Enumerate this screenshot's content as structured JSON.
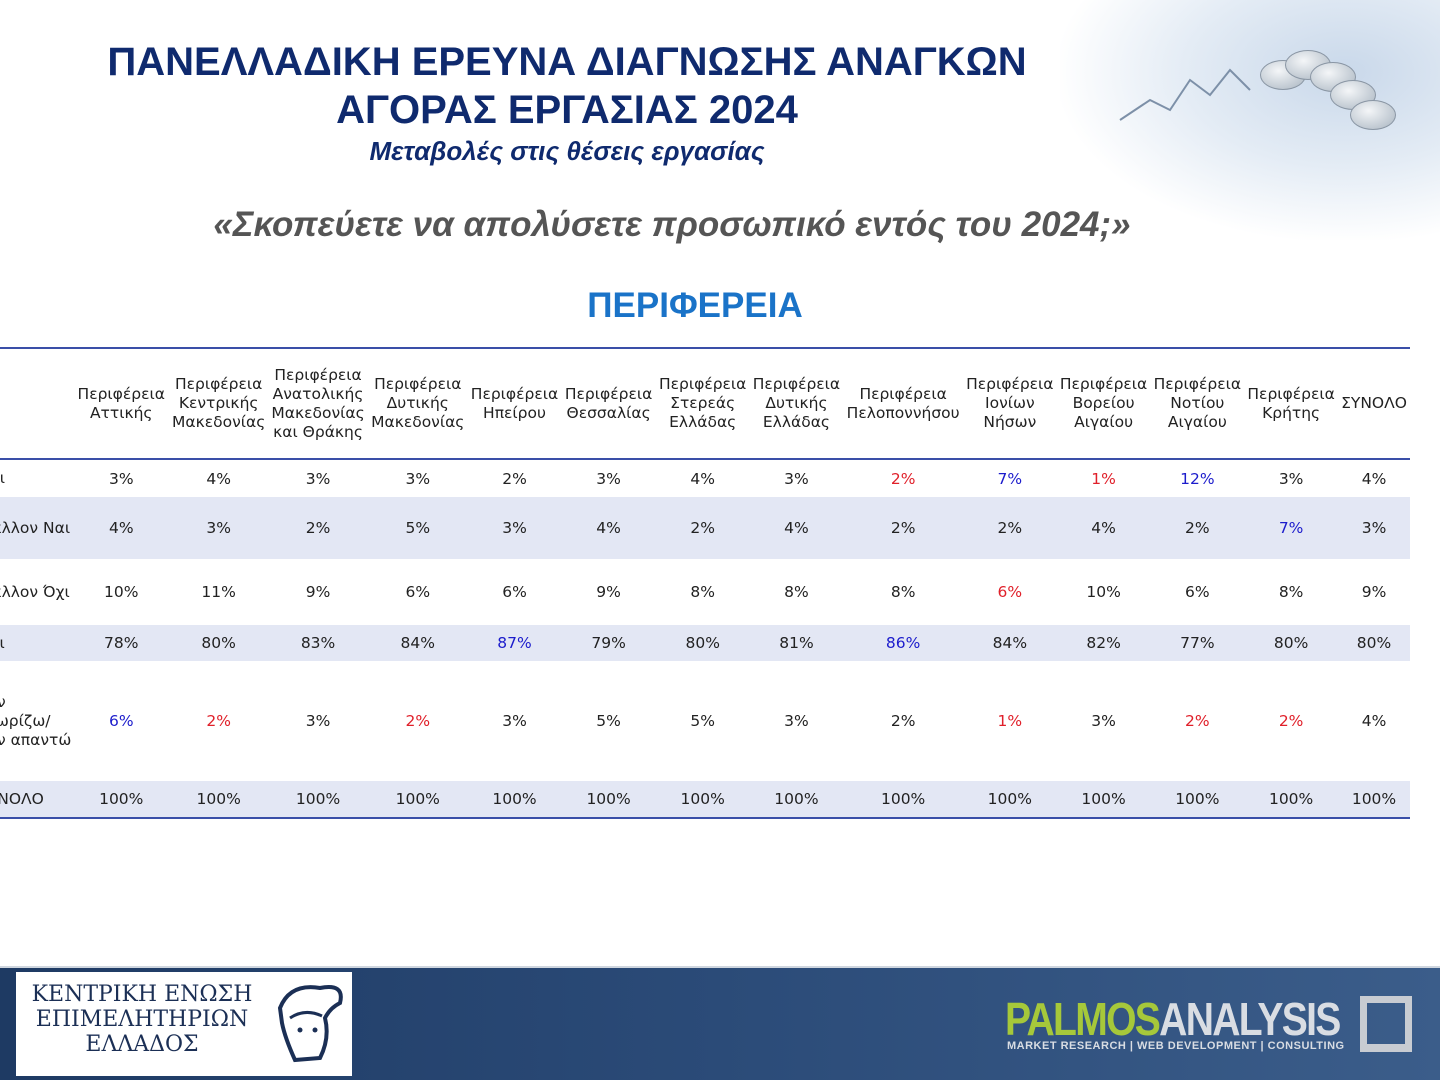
{
  "header": {
    "title_line1": "ΠΑΝΕΛΛΑΔΙΚΗ ΕΡΕΥΝΑ ΔΙΑΓΝΩΣΗΣ ΑΝΑΓΚΩΝ",
    "title_line2": "ΑΓΟΡΑΣ ΕΡΓΑΣΙΑΣ 2024",
    "subtitle": "Μεταβολές στις θέσεις εργασίας",
    "question": "«Σκοπεύετε να απολύσετε προσωπικό εντός του 2024;»",
    "section": "ΠΕΡΙΦΕΡΕΙΑ"
  },
  "colors": {
    "title": "#0f2a6e",
    "section": "#1a73c8",
    "red": "#e0202a",
    "blue": "#1c1ccc",
    "row_shade": "#e3e7f4"
  },
  "table": {
    "columns": [
      "Περιφέρεια Αττικής",
      "Περιφέρεια Κεντρικής Μακεδονίας",
      "Περιφέρεια Ανατολικής Μακεδονίας και Θράκης",
      "Περιφέρεια Δυτικής Μακεδονίας",
      "Περιφέρεια Ηπείρου",
      "Περιφέρεια Θεσσαλίας",
      "Περιφέρεια Στερεάς Ελλάδας",
      "Περιφέρεια Δυτικής Ελλάδας",
      "Περιφέρεια Πελοποννήσου",
      "Περιφέρεια Ιονίων Νήσων",
      "Περιφέρεια Βορείου Αιγαίου",
      "Περιφέρεια Νοτίου Αιγαίου",
      "Περιφέρεια Κρήτης",
      "ΣΥΝΟΛΟ"
    ],
    "rows": [
      {
        "label": "Ναι",
        "values": [
          "3%",
          "4%",
          "3%",
          "3%",
          "2%",
          "3%",
          "4%",
          "3%",
          "2%",
          "7%",
          "1%",
          "12%",
          "3%",
          "4%"
        ],
        "colors": [
          "",
          "",
          "",
          "",
          "",
          "",
          "",
          "",
          "red",
          "blue",
          "red",
          "blue",
          "",
          ""
        ]
      },
      {
        "label": "Μάλλον Ναι",
        "values": [
          "4%",
          "3%",
          "2%",
          "5%",
          "3%",
          "4%",
          "2%",
          "4%",
          "2%",
          "2%",
          "4%",
          "2%",
          "7%",
          "3%"
        ],
        "colors": [
          "",
          "",
          "",
          "",
          "",
          "",
          "",
          "",
          "",
          "",
          "",
          "",
          "blue",
          ""
        ]
      },
      {
        "label": "Μάλλον Όχι",
        "values": [
          "10%",
          "11%",
          "9%",
          "6%",
          "6%",
          "9%",
          "8%",
          "8%",
          "8%",
          "6%",
          "10%",
          "6%",
          "8%",
          "9%"
        ],
        "colors": [
          "",
          "",
          "",
          "",
          "",
          "",
          "",
          "",
          "",
          "red",
          "",
          "",
          "",
          ""
        ]
      },
      {
        "label": "Όχι",
        "values": [
          "78%",
          "80%",
          "83%",
          "84%",
          "87%",
          "79%",
          "80%",
          "81%",
          "86%",
          "84%",
          "82%",
          "77%",
          "80%",
          "80%"
        ],
        "colors": [
          "",
          "",
          "",
          "",
          "blue",
          "",
          "",
          "",
          "blue",
          "",
          "",
          "",
          "",
          ""
        ]
      },
      {
        "label": "Δεν γνωρίζω/ Δεν απαντώ",
        "values": [
          "6%",
          "2%",
          "3%",
          "2%",
          "3%",
          "5%",
          "5%",
          "3%",
          "2%",
          "1%",
          "3%",
          "2%",
          "2%",
          "4%"
        ],
        "colors": [
          "blue",
          "red",
          "",
          "red",
          "",
          "",
          "",
          "",
          "",
          "red",
          "",
          "red",
          "red",
          ""
        ]
      },
      {
        "label": "ΣΥΝΟΛΟ",
        "values": [
          "100%",
          "100%",
          "100%",
          "100%",
          "100%",
          "100%",
          "100%",
          "100%",
          "100%",
          "100%",
          "100%",
          "100%",
          "100%",
          "100%"
        ],
        "colors": [
          "",
          "",
          "",
          "",
          "",
          "",
          "",
          "",
          "",
          "",
          "",
          "",
          "",
          ""
        ]
      }
    ]
  },
  "footer": {
    "left_logo": "ΚΕΝΤΡΙΚΗ ΕΝΩΣΗ ΕΠΙΜΕΛΗΤΗΡΙΩΝ ΕΛΛΑΔΟΣ",
    "right_logo_a": "PALMOS",
    "right_logo_b": "ANALYSIS",
    "right_logo_tagline": "MARKET RESEARCH | WEB DEVELOPMENT | CONSULTING"
  }
}
